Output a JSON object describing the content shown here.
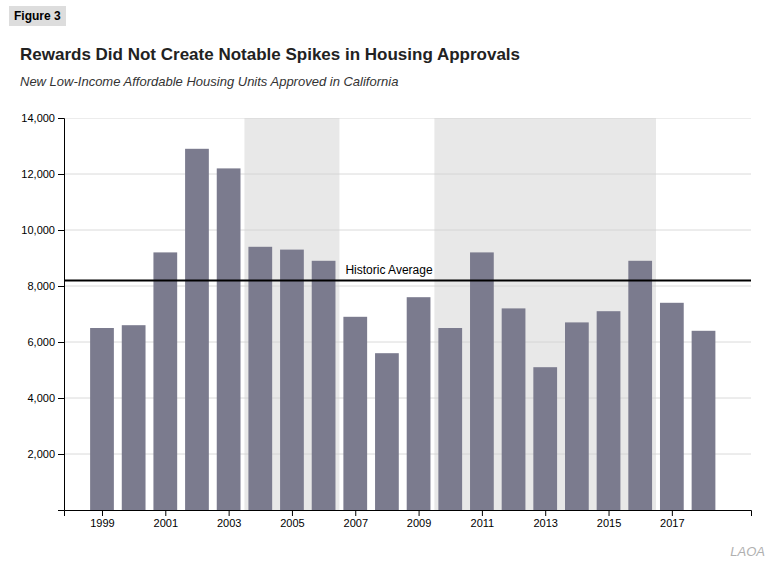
{
  "chart_data": {
    "type": "bar",
    "figure_label": "Figure 3",
    "title": "Rewards Did Not Create Notable Spikes in Housing Approvals",
    "subtitle": "New Low-Income Affordable Housing Units Approved in California",
    "watermark": "LAOA",
    "x": [
      1999,
      2000,
      2001,
      2002,
      2003,
      2004,
      2005,
      2006,
      2007,
      2008,
      2009,
      2010,
      2011,
      2012,
      2013,
      2014,
      2015,
      2016,
      2017,
      2018
    ],
    "values": [
      6500,
      6600,
      9200,
      12900,
      12200,
      9400,
      9300,
      8900,
      6900,
      5600,
      7600,
      6500,
      9200,
      7200,
      5100,
      6700,
      7100,
      8900,
      7400,
      6400
    ],
    "color": "#7b7b8e",
    "average": {
      "value": 8200,
      "label": "Historic Average"
    },
    "shaded_ranges": [
      [
        2003.5,
        2006.5
      ],
      [
        2009.5,
        2016.5
      ]
    ],
    "xlim": [
      1997.8,
      2019.5
    ],
    "xticks": [
      1999,
      2001,
      2003,
      2005,
      2007,
      2009,
      2011,
      2013,
      2015,
      2017
    ],
    "ylim": [
      0,
      14000
    ],
    "yticks": [
      {
        "value": 2000,
        "label": "2,000"
      },
      {
        "value": 4000,
        "label": "4,000"
      },
      {
        "value": 6000,
        "label": "6,000"
      },
      {
        "value": 8000,
        "label": "8,000"
      },
      {
        "value": 10000,
        "label": "10,000"
      },
      {
        "value": 12000,
        "label": "12,000"
      },
      {
        "value": 14000,
        "label": "14,000"
      }
    ],
    "grid": true
  }
}
